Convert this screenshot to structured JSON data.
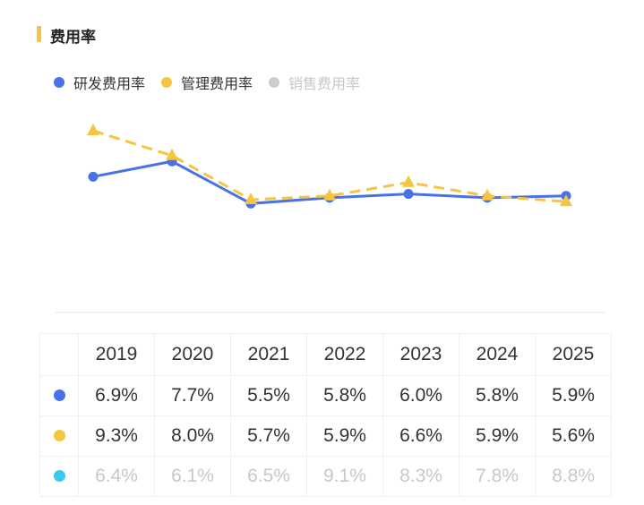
{
  "title": "费用率",
  "colors": {
    "rd": "#4a72e8",
    "admin": "#f5c542",
    "sales": "#cccccc",
    "sales_table_dot": "#3cc8f0",
    "accent": "#f5c542"
  },
  "legend": [
    {
      "label": "研发费用率",
      "color": "#4a72e8",
      "active": true
    },
    {
      "label": "管理费用率",
      "color": "#f5c542",
      "active": true
    },
    {
      "label": "销售费用率",
      "color": "#cccccc",
      "active": false
    }
  ],
  "chart_data": {
    "type": "line",
    "title": "费用率",
    "x": [
      "2019",
      "2020",
      "2021",
      "2022",
      "2023",
      "2024",
      "2025"
    ],
    "ylim": [
      0,
      10
    ],
    "grid": false,
    "legend_position": "top-left",
    "series": [
      {
        "name": "研发费用率",
        "values": [
          6.9,
          7.7,
          5.5,
          5.8,
          6.0,
          5.8,
          5.9
        ],
        "color": "#4a72e8",
        "style": "solid",
        "marker": "circle",
        "visible": true
      },
      {
        "name": "管理费用率",
        "values": [
          9.3,
          8.0,
          5.7,
          5.9,
          6.6,
          5.9,
          5.6
        ],
        "color": "#f5c542",
        "style": "dashed",
        "marker": "triangle",
        "visible": true
      },
      {
        "name": "销售费用率",
        "values": [
          6.4,
          6.1,
          6.5,
          9.1,
          8.3,
          7.8,
          8.8
        ],
        "color": "#3cc8f0",
        "visible": false
      }
    ]
  },
  "table": {
    "years": [
      "2019",
      "2020",
      "2021",
      "2022",
      "2023",
      "2024",
      "2025"
    ],
    "rows": [
      {
        "color": "#4a72e8",
        "muted": false,
        "cells": [
          "6.9%",
          "7.7%",
          "5.5%",
          "5.8%",
          "6.0%",
          "5.8%",
          "5.9%"
        ]
      },
      {
        "color": "#f5c542",
        "muted": false,
        "cells": [
          "9.3%",
          "8.0%",
          "5.7%",
          "5.9%",
          "6.6%",
          "5.9%",
          "5.6%"
        ]
      },
      {
        "color": "#3cc8f0",
        "muted": true,
        "cells": [
          "6.4%",
          "6.1%",
          "6.5%",
          "9.1%",
          "8.3%",
          "7.8%",
          "8.8%"
        ]
      }
    ]
  }
}
